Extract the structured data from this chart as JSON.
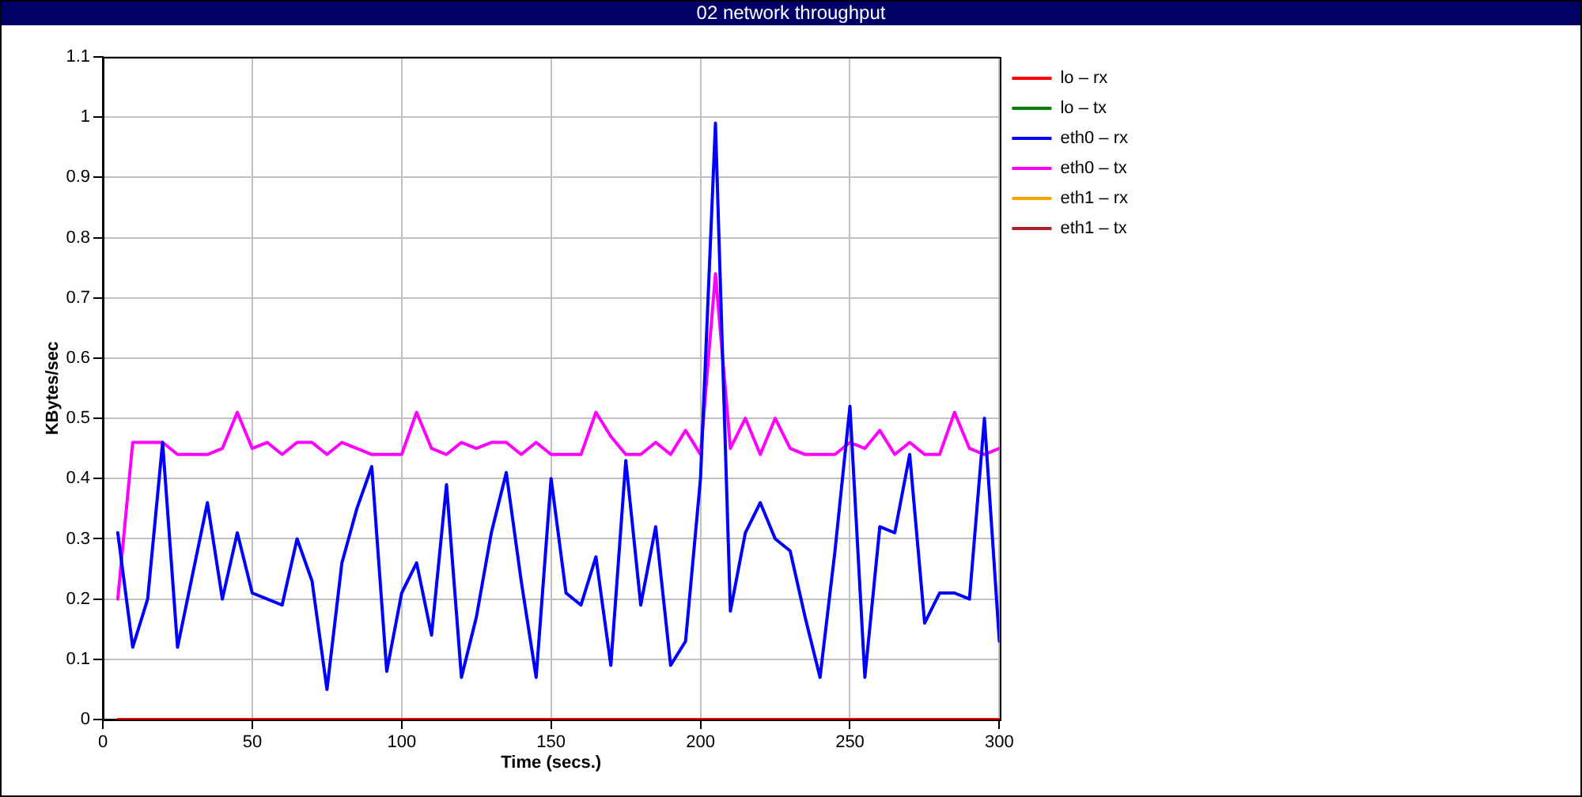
{
  "chart_data": {
    "type": "line",
    "title": "02 network throughput",
    "xlabel": "Time (secs.)",
    "ylabel": "KBytes/sec",
    "x": [
      5,
      10,
      15,
      20,
      25,
      30,
      35,
      40,
      45,
      50,
      55,
      60,
      65,
      70,
      75,
      80,
      85,
      90,
      95,
      100,
      105,
      110,
      115,
      120,
      125,
      130,
      135,
      140,
      145,
      150,
      155,
      160,
      165,
      170,
      175,
      180,
      185,
      190,
      195,
      200,
      205,
      210,
      215,
      220,
      225,
      230,
      235,
      240,
      245,
      250,
      255,
      260,
      265,
      270,
      275,
      280,
      285,
      290,
      295,
      300
    ],
    "xlim": [
      0,
      300
    ],
    "xticks": [
      0,
      50,
      100,
      150,
      200,
      250,
      300
    ],
    "ylim": [
      0,
      1.1
    ],
    "yticks": [
      0,
      0.1,
      0.2,
      0.3,
      0.4,
      0.5,
      0.6,
      0.7,
      0.8,
      0.9,
      1,
      1.1
    ],
    "grid": true,
    "legend": "right",
    "marker": "none",
    "line_style": "solid",
    "series": [
      {
        "name": "lo – rx",
        "color": "#ff0000",
        "values": [
          0,
          0,
          0,
          0,
          0,
          0,
          0,
          0,
          0,
          0,
          0,
          0,
          0,
          0,
          0,
          0,
          0,
          0,
          0,
          0,
          0,
          0,
          0,
          0,
          0,
          0,
          0,
          0,
          0,
          0,
          0,
          0,
          0,
          0,
          0,
          0,
          0,
          0,
          0,
          0,
          0,
          0,
          0,
          0,
          0,
          0,
          0,
          0,
          0,
          0,
          0,
          0,
          0,
          0,
          0,
          0,
          0,
          0,
          0,
          0
        ]
      },
      {
        "name": "lo – tx",
        "color": "#008000",
        "values": [
          null,
          null,
          null,
          null,
          null,
          null,
          null,
          null,
          null,
          null,
          null,
          null,
          null,
          null,
          null,
          null,
          null,
          null,
          null,
          null,
          null,
          null,
          null,
          null,
          null,
          null,
          null,
          null,
          null,
          null,
          null,
          null,
          null,
          null,
          null,
          null,
          null,
          null,
          null,
          null,
          null,
          null,
          null,
          null,
          null,
          null,
          null,
          null,
          null,
          null,
          null,
          null,
          null,
          null,
          null,
          null,
          null,
          null,
          null,
          null
        ]
      },
      {
        "name": "eth0 – rx",
        "color": "#0000ff",
        "values": [
          0.31,
          0.12,
          0.2,
          0.46,
          0.12,
          0.24,
          0.36,
          0.2,
          0.31,
          0.21,
          0.2,
          0.19,
          0.3,
          0.23,
          0.05,
          0.26,
          0.35,
          0.42,
          0.08,
          0.21,
          0.26,
          0.14,
          0.39,
          0.07,
          0.17,
          0.31,
          0.41,
          0.23,
          0.07,
          0.4,
          0.21,
          0.19,
          0.27,
          0.09,
          0.43,
          0.19,
          0.32,
          0.09,
          0.13,
          0.4,
          0.99,
          0.18,
          0.31,
          0.36,
          0.3,
          0.28,
          0.17,
          0.07,
          0.28,
          0.52,
          0.07,
          0.32,
          0.31,
          0.44,
          0.16,
          0.21,
          0.21,
          0.2,
          0.5,
          0.13
        ]
      },
      {
        "name": "eth0 – tx",
        "color": "#ff00ff",
        "values": [
          0.2,
          0.46,
          0.46,
          0.46,
          0.44,
          0.44,
          0.44,
          0.45,
          0.51,
          0.45,
          0.46,
          0.44,
          0.46,
          0.46,
          0.44,
          0.46,
          0.45,
          0.44,
          0.44,
          0.44,
          0.51,
          0.45,
          0.44,
          0.46,
          0.45,
          0.46,
          0.46,
          0.44,
          0.46,
          0.44,
          0.44,
          0.44,
          0.51,
          0.47,
          0.44,
          0.44,
          0.46,
          0.44,
          0.48,
          0.44,
          0.74,
          0.45,
          0.5,
          0.44,
          0.5,
          0.45,
          0.44,
          0.44,
          0.44,
          0.46,
          0.45,
          0.48,
          0.44,
          0.46,
          0.44,
          0.44,
          0.51,
          0.45,
          0.44,
          0.45
        ]
      },
      {
        "name": "eth1 – rx",
        "color": "#ffa500",
        "values": [
          null,
          null,
          null,
          null,
          null,
          null,
          null,
          null,
          null,
          null,
          null,
          null,
          null,
          null,
          null,
          null,
          null,
          null,
          null,
          null,
          null,
          null,
          null,
          null,
          null,
          null,
          null,
          null,
          null,
          null,
          null,
          null,
          null,
          null,
          null,
          null,
          null,
          null,
          null,
          null,
          null,
          null,
          null,
          null,
          null,
          null,
          null,
          null,
          null,
          null,
          null,
          null,
          null,
          null,
          null,
          null,
          null,
          null,
          null,
          null
        ]
      },
      {
        "name": "eth1 – tx",
        "color": "#b22222",
        "values": [
          null,
          null,
          null,
          null,
          null,
          null,
          null,
          null,
          null,
          null,
          null,
          null,
          null,
          null,
          null,
          null,
          null,
          null,
          null,
          null,
          null,
          null,
          null,
          null,
          null,
          null,
          null,
          null,
          null,
          null,
          null,
          null,
          null,
          null,
          null,
          null,
          null,
          null,
          null,
          null,
          null,
          null,
          null,
          null,
          null,
          null,
          null,
          null,
          null,
          null,
          null,
          null,
          null,
          null,
          null,
          null,
          null,
          null,
          null,
          null
        ]
      }
    ]
  }
}
